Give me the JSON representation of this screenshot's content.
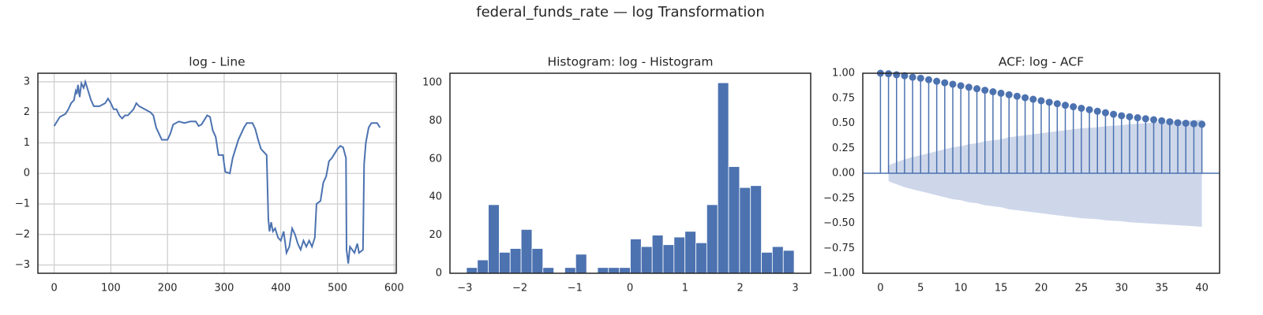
{
  "title": "federal_funds_rate — log Transformation",
  "chart_data": [
    {
      "type": "line",
      "title": "log - Line",
      "color": "#4c72b0",
      "grid": true,
      "x": [
        0,
        5,
        10,
        20,
        25,
        30,
        35,
        38,
        40,
        42,
        45,
        48,
        52,
        55,
        60,
        65,
        70,
        80,
        90,
        95,
        100,
        105,
        110,
        115,
        120,
        125,
        130,
        140,
        145,
        150,
        160,
        170,
        175,
        180,
        185,
        190,
        200,
        205,
        210,
        220,
        230,
        240,
        250,
        255,
        260,
        270,
        275,
        280,
        285,
        290,
        298,
        300,
        302,
        310,
        315,
        325,
        335,
        340,
        350,
        355,
        360,
        365,
        375,
        378,
        380,
        383,
        386,
        390,
        395,
        400,
        405,
        410,
        415,
        420,
        425,
        430,
        435,
        440,
        445,
        450,
        455,
        460,
        463,
        470,
        475,
        480,
        485,
        490,
        500,
        505,
        510,
        515,
        516,
        519,
        522,
        530,
        535,
        538,
        545,
        547,
        550,
        555,
        560,
        570,
        575
      ],
      "values": [
        1.55,
        1.7,
        1.85,
        1.95,
        2.1,
        2.3,
        2.4,
        2.7,
        2.6,
        2.9,
        2.5,
        2.95,
        2.8,
        3.0,
        2.7,
        2.4,
        2.2,
        2.2,
        2.3,
        2.45,
        2.3,
        2.1,
        2.1,
        1.9,
        1.8,
        1.9,
        1.9,
        2.1,
        2.3,
        2.2,
        2.1,
        2.0,
        1.9,
        1.5,
        1.3,
        1.1,
        1.1,
        1.3,
        1.6,
        1.7,
        1.65,
        1.7,
        1.7,
        1.55,
        1.6,
        1.9,
        1.85,
        1.4,
        1.2,
        0.6,
        0.6,
        0.3,
        0.05,
        0.0,
        0.5,
        1.1,
        1.5,
        1.65,
        1.65,
        1.45,
        1.1,
        0.8,
        0.6,
        -1.5,
        -1.9,
        -1.6,
        -1.9,
        -1.8,
        -2.1,
        -2.2,
        -1.9,
        -2.6,
        -2.4,
        -1.8,
        -2.0,
        -2.3,
        -2.5,
        -2.2,
        -2.4,
        -2.2,
        -2.4,
        -2.1,
        -1.0,
        -0.9,
        -0.3,
        -0.1,
        0.4,
        0.5,
        0.8,
        0.9,
        0.85,
        0.5,
        -2.5,
        -2.95,
        -2.4,
        -2.6,
        -2.3,
        -2.6,
        -2.5,
        0.3,
        1.0,
        1.5,
        1.65,
        1.65,
        1.5
      ],
      "xlim": [
        -28.75,
        603.75
      ],
      "xticks": [
        0,
        100,
        200,
        300,
        400,
        500,
        600
      ],
      "ylim": [
        -3.27,
        3.28
      ],
      "yticks": [
        {
          "value": -3,
          "label": "−3"
        },
        {
          "value": -2,
          "label": "−2"
        },
        {
          "value": -1,
          "label": "−1"
        },
        0,
        1,
        2,
        3
      ]
    },
    {
      "type": "histogram",
      "title": "Histogram: log - Histogram",
      "color": "#4c72b0",
      "grid": false,
      "bins": [
        -2.97,
        -2.772,
        -2.573,
        -2.375,
        -2.177,
        -1.978,
        -1.78,
        -1.582,
        -1.383,
        -1.185,
        -0.987,
        -0.788,
        -0.59,
        -0.392,
        -0.193,
        0.005,
        0.203,
        0.402,
        0.6,
        0.798,
        0.997,
        1.195,
        1.393,
        1.592,
        1.79,
        1.988,
        2.187,
        2.385,
        2.583,
        2.782,
        2.98
      ],
      "values": [
        3,
        7,
        36,
        11,
        13,
        23,
        13,
        3,
        0,
        3,
        10,
        0,
        3,
        3,
        3,
        18,
        14,
        20,
        15,
        19,
        22,
        16,
        36,
        100,
        56,
        45,
        46,
        11,
        14,
        12
      ],
      "xlim": [
        -3.27,
        3.28
      ],
      "xticks": [
        {
          "value": -3,
          "label": "−3"
        },
        {
          "value": -2,
          "label": "−2"
        },
        {
          "value": -1,
          "label": "−1"
        },
        0,
        1,
        2,
        3
      ],
      "ylim": [
        0,
        105
      ],
      "yticks": [
        0,
        20,
        40,
        60,
        80,
        100
      ]
    },
    {
      "type": "stem",
      "title": "ACF: log - ACF",
      "color": "#4c72b0",
      "grid": false,
      "band_color": "#ced7ea",
      "x": [
        0,
        1,
        2,
        3,
        4,
        5,
        6,
        7,
        8,
        9,
        10,
        11,
        12,
        13,
        14,
        15,
        16,
        17,
        18,
        19,
        20,
        21,
        22,
        23,
        24,
        25,
        26,
        27,
        28,
        29,
        30,
        31,
        32,
        33,
        34,
        35,
        36,
        37,
        38,
        39,
        40
      ],
      "values": [
        1.0,
        0.995,
        0.985,
        0.975,
        0.96,
        0.95,
        0.935,
        0.92,
        0.905,
        0.89,
        0.875,
        0.86,
        0.845,
        0.83,
        0.815,
        0.8,
        0.785,
        0.77,
        0.755,
        0.74,
        0.725,
        0.71,
        0.695,
        0.68,
        0.665,
        0.65,
        0.635,
        0.62,
        0.605,
        0.59,
        0.575,
        0.565,
        0.555,
        0.545,
        0.535,
        0.525,
        0.515,
        0.505,
        0.5,
        0.495,
        0.49
      ],
      "confidence": {
        "x": [
          1,
          2,
          3,
          4,
          5,
          6,
          7,
          8,
          9,
          10,
          11,
          12,
          13,
          14,
          15,
          16,
          17,
          18,
          19,
          20,
          21,
          22,
          23,
          24,
          25,
          26,
          27,
          28,
          29,
          30,
          31,
          32,
          33,
          34,
          35,
          36,
          37,
          38,
          39,
          40
        ],
        "values": [
          0.08,
          0.11,
          0.14,
          0.16,
          0.18,
          0.2,
          0.22,
          0.24,
          0.26,
          0.27,
          0.29,
          0.3,
          0.32,
          0.33,
          0.34,
          0.36,
          0.37,
          0.38,
          0.39,
          0.4,
          0.41,
          0.42,
          0.43,
          0.44,
          0.45,
          0.455,
          0.46,
          0.47,
          0.475,
          0.48,
          0.49,
          0.495,
          0.5,
          0.505,
          0.51,
          0.515,
          0.52,
          0.525,
          0.53,
          0.535
        ]
      },
      "xlim": [
        -2.2,
        42.2
      ],
      "xticks": [
        0,
        5,
        10,
        15,
        20,
        25,
        30,
        35,
        40
      ],
      "ylim": [
        -1,
        1
      ],
      "yticks": [
        {
          "value": -1,
          "label": "−1.00"
        },
        {
          "value": -0.75,
          "label": "−0.75"
        },
        {
          "value": -0.5,
          "label": "−0.50"
        },
        {
          "value": -0.25,
          "label": "−0.25"
        },
        {
          "value": 0,
          "label": "0.00"
        },
        {
          "value": 0.25,
          "label": "0.25"
        },
        {
          "value": 0.5,
          "label": "0.50"
        },
        {
          "value": 0.75,
          "label": "0.75"
        },
        {
          "value": 1,
          "label": "1.00"
        }
      ]
    }
  ]
}
